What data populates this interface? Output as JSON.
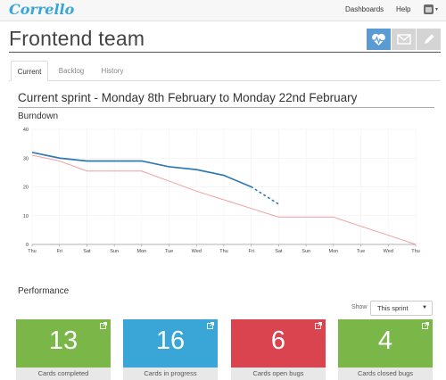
{
  "app": {
    "logo": "Corrello",
    "nav": {
      "dashboards": "Dashboards",
      "help": "Help"
    },
    "user_menu": {
      "avatar": "user-avatar",
      "caret": "▾"
    }
  },
  "page": {
    "title": "Frontend team"
  },
  "toolbar": {
    "icons": [
      "heart-pulse-icon",
      "envelope-icon",
      "pencil-icon"
    ]
  },
  "tabs": [
    {
      "label": "Current",
      "active": true
    },
    {
      "label": "Backlog",
      "active": false
    },
    {
      "label": "History",
      "active": false
    }
  ],
  "sprint": {
    "heading": "Current sprint - Monday 8th February to Monday 22nd February"
  },
  "burndown": {
    "label": "Burndown"
  },
  "chart_data": {
    "type": "line",
    "title": "",
    "xlabel": "",
    "ylabel": "",
    "categories": [
      "Thu",
      "Fri",
      "Sat",
      "Sun",
      "Mon",
      "Tue",
      "Wed",
      "Thu",
      "Fri",
      "Sat",
      "Sun",
      "Mon",
      "Tue",
      "Wed",
      "Thu"
    ],
    "ylim": [
      0,
      40
    ],
    "yticks": [
      0,
      10,
      20,
      30,
      40
    ],
    "grid": true,
    "series": [
      {
        "style": "actual",
        "color": "#2f79b5",
        "values": [
          32,
          30,
          29,
          29,
          29,
          27,
          26,
          24,
          20,
          null,
          null,
          null,
          null,
          null,
          null
        ]
      },
      {
        "style": "projection",
        "color": "#2f79b5",
        "dotted": true,
        "values": [
          null,
          null,
          null,
          null,
          null,
          null,
          null,
          null,
          20,
          14,
          null,
          null,
          null,
          null,
          null
        ]
      },
      {
        "style": "ideal",
        "color": "#f0a0a0",
        "values": [
          31,
          29,
          25.5,
          25.5,
          25.5,
          22,
          18.5,
          15.5,
          12.5,
          9.5,
          9.5,
          9.5,
          6.3,
          3.2,
          0
        ]
      }
    ]
  },
  "performance": {
    "label": "Performance",
    "show_label": "Show",
    "period": "This sprint",
    "cards": [
      {
        "value": "13",
        "label": "Cards completed",
        "color": "#7ab648"
      },
      {
        "value": "16",
        "label": "Cards in progress",
        "color": "#3aa6d8"
      },
      {
        "value": "6",
        "label": "Cards open bugs",
        "color": "#d9444f"
      },
      {
        "value": "4",
        "label": "Cards closed bugs",
        "color": "#7ab648"
      }
    ]
  }
}
